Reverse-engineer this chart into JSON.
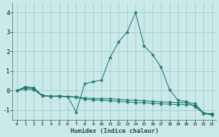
{
  "xlabel": "Humidex (Indice chaleur)",
  "xlim": [
    -0.5,
    23.5
  ],
  "ylim": [
    -1.5,
    4.5
  ],
  "yticks": [
    -1,
    0,
    1,
    2,
    3,
    4
  ],
  "xticks": [
    0,
    1,
    2,
    3,
    4,
    5,
    6,
    7,
    8,
    9,
    10,
    11,
    12,
    13,
    14,
    15,
    16,
    17,
    18,
    19,
    20,
    21,
    22,
    23
  ],
  "background_color": "#cce9e9",
  "grid_color": "#99cccc",
  "line_color": "#1a7a6e",
  "series": [
    [
      0.0,
      0.2,
      0.15,
      -0.25,
      -0.3,
      -0.28,
      -0.3,
      -1.1,
      0.35,
      0.45,
      0.55,
      1.7,
      2.5,
      3.0,
      4.0,
      2.3,
      1.85,
      1.2,
      0.05,
      -0.5,
      -0.55,
      -0.85,
      -1.15,
      -1.2
    ],
    [
      0.0,
      0.15,
      0.1,
      -0.25,
      -0.28,
      -0.28,
      -0.3,
      -0.32,
      -0.38,
      -0.4,
      -0.42,
      -0.42,
      -0.45,
      -0.48,
      -0.5,
      -0.52,
      -0.55,
      -0.58,
      -0.6,
      -0.62,
      -0.62,
      -0.65,
      -1.15,
      -1.2
    ],
    [
      0.0,
      0.08,
      0.05,
      -0.28,
      -0.3,
      -0.3,
      -0.32,
      -0.35,
      -0.45,
      -0.48,
      -0.5,
      -0.52,
      -0.55,
      -0.58,
      -0.62,
      -0.62,
      -0.65,
      -0.68,
      -0.7,
      -0.72,
      -0.72,
      -0.75,
      -1.18,
      -1.25
    ]
  ]
}
